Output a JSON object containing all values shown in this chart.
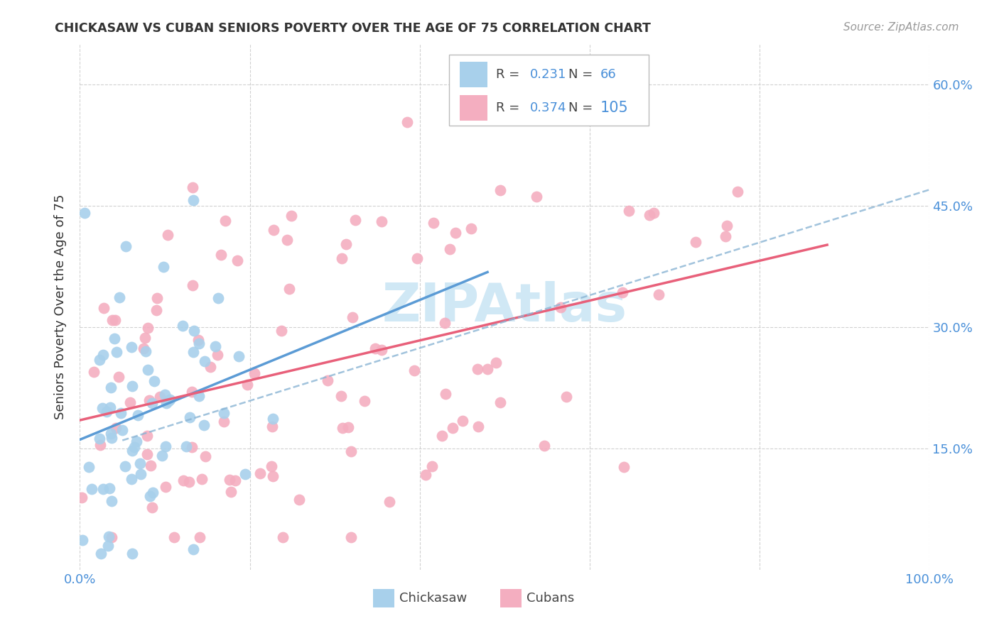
{
  "title": "CHICKASAW VS CUBAN SENIORS POVERTY OVER THE AGE OF 75 CORRELATION CHART",
  "source": "Source: ZipAtlas.com",
  "ylabel": "Seniors Poverty Over the Age of 75",
  "xlim": [
    0.0,
    1.0
  ],
  "ylim": [
    0.0,
    0.65
  ],
  "chickasaw_R": 0.231,
  "chickasaw_N": 66,
  "cuban_R": 0.374,
  "cuban_N": 105,
  "chickasaw_scatter_color": "#a8d0eb",
  "cuban_scatter_color": "#f4aec0",
  "chickasaw_line_color": "#5b9bd5",
  "cuban_line_color": "#e8607a",
  "dash_line_color": "#8ab4d4",
  "watermark_color": "#d0e8f5",
  "grid_color": "#cccccc",
  "title_color": "#333333",
  "axis_label_color": "#4a90d9",
  "background_color": "#ffffff"
}
